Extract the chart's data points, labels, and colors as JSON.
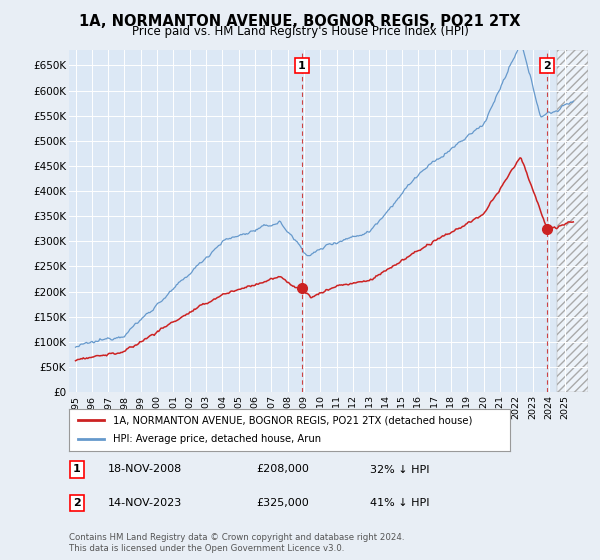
{
  "title": "1A, NORMANTON AVENUE, BOGNOR REGIS, PO21 2TX",
  "subtitle": "Price paid vs. HM Land Registry's House Price Index (HPI)",
  "background_color": "#e8eef5",
  "plot_bg_color": "#dce8f5",
  "hpi_color": "#6699cc",
  "price_color": "#cc2222",
  "ylim": [
    0,
    680000
  ],
  "yticks": [
    0,
    50000,
    100000,
    150000,
    200000,
    250000,
    300000,
    350000,
    400000,
    450000,
    500000,
    550000,
    600000,
    650000
  ],
  "ytick_labels": [
    "£0",
    "£50K",
    "£100K",
    "£150K",
    "£200K",
    "£250K",
    "£300K",
    "£350K",
    "£400K",
    "£450K",
    "£500K",
    "£550K",
    "£600K",
    "£650K"
  ],
  "sale1_date": "18-NOV-2008",
  "sale1_price": 208000,
  "sale1_hpi_pct": "32% ↓ HPI",
  "sale1_x": 2008.88,
  "sale2_date": "14-NOV-2023",
  "sale2_price": 325000,
  "sale2_hpi_pct": "41% ↓ HPI",
  "sale2_x": 2023.88,
  "legend_label1": "1A, NORMANTON AVENUE, BOGNOR REGIS, PO21 2TX (detached house)",
  "legend_label2": "HPI: Average price, detached house, Arun",
  "footer": "Contains HM Land Registry data © Crown copyright and database right 2024.\nThis data is licensed under the Open Government Licence v3.0.",
  "xlim_left": 1994.6,
  "xlim_right": 2026.4
}
